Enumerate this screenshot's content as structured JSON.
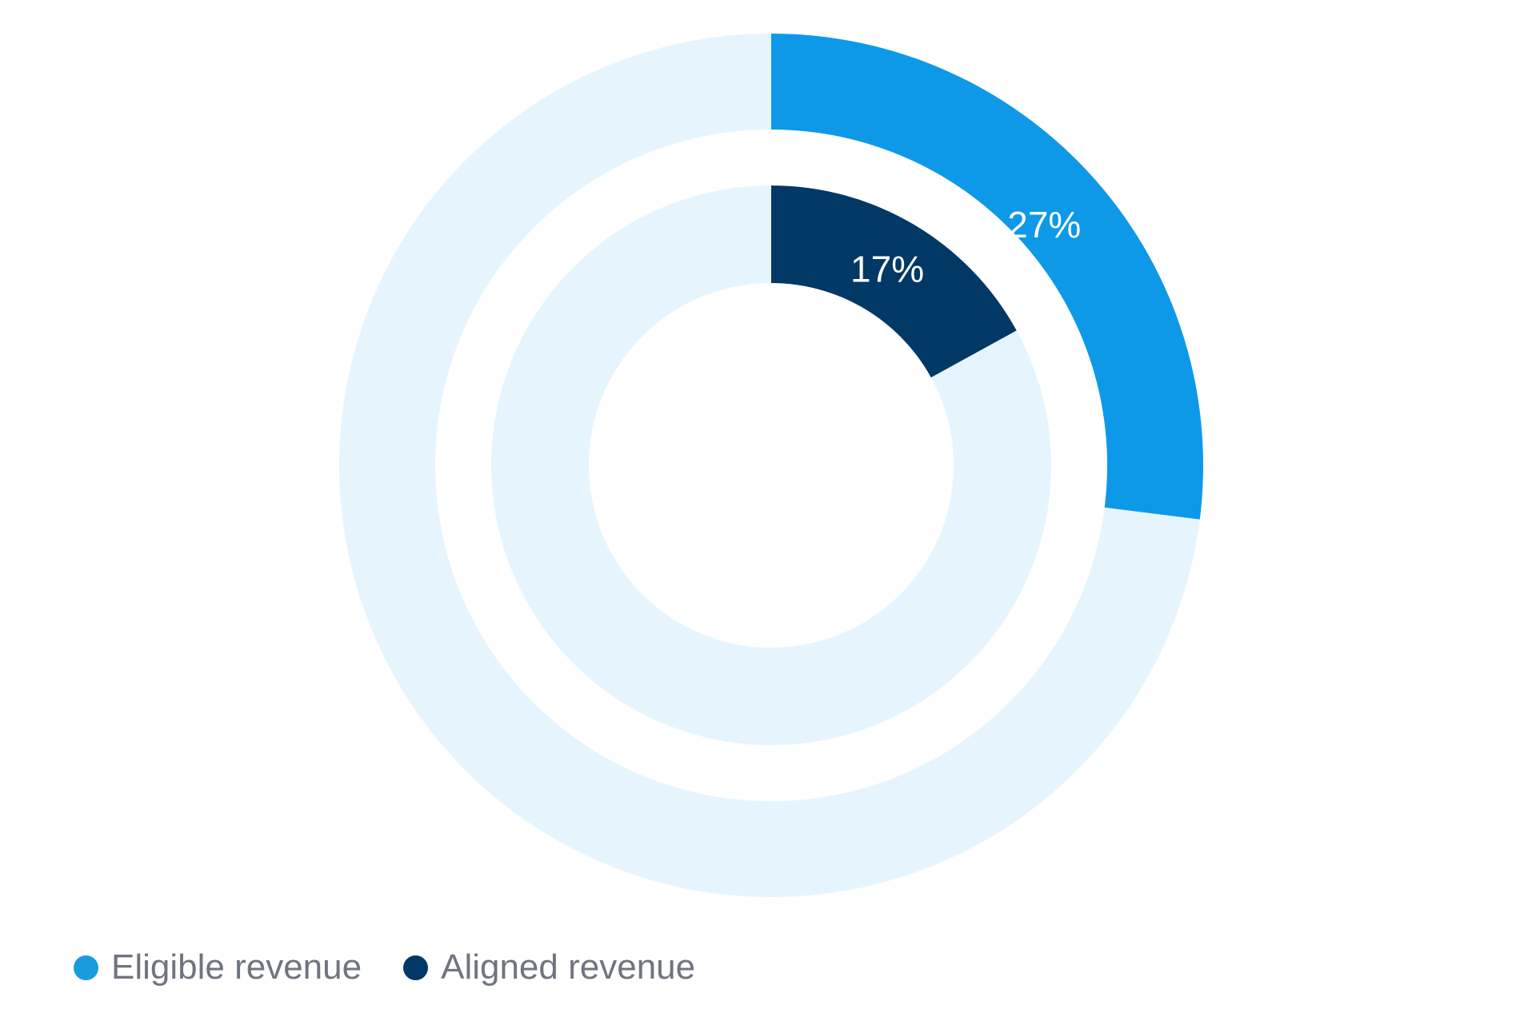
{
  "chart_data": {
    "type": "pie",
    "variant": "nested-donut",
    "series": [
      {
        "name": "Eligible revenue",
        "ring": "outer",
        "value": 27,
        "value_label": "27%",
        "color": "#0d99e8",
        "track_color": "#e6f5fd"
      },
      {
        "name": "Aligned revenue",
        "ring": "inner",
        "value": 17,
        "value_label": "17%",
        "color": "#023865",
        "track_color": "#e6f5fd"
      }
    ],
    "unit": "%",
    "total": 100,
    "label_color": "#ffffff",
    "legend_position": "bottom-left"
  },
  "legend": {
    "items": [
      {
        "label": "Eligible revenue",
        "color": "#1a9be0"
      },
      {
        "label": "Aligned revenue",
        "color": "#023865"
      }
    ]
  }
}
